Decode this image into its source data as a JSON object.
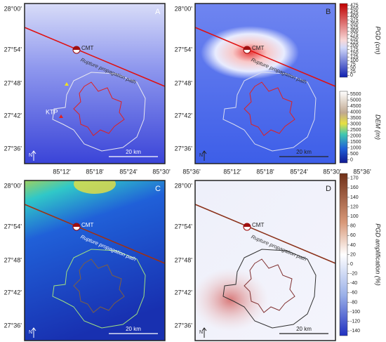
{
  "panels": [
    {
      "letter": "A"
    },
    {
      "letter": "B"
    },
    {
      "letter": "C"
    },
    {
      "letter": "D"
    }
  ],
  "lat_labels": [
    "28°00'",
    "27°54'",
    "27°48'",
    "27°42'",
    "27°36'"
  ],
  "lon_labels": [
    "85°12'",
    "85°18'",
    "85°24'",
    "85°30'",
    "85°36'"
  ],
  "annotations": {
    "cmt": "CMT",
    "rupture": "Rupture propagation path",
    "ktp": "KTP",
    "north": "N",
    "scale": "20 km"
  },
  "colorbars": [
    {
      "title": "PGD (cm)",
      "ticks": [
        475,
        450,
        425,
        400,
        375,
        350,
        325,
        300,
        275,
        250,
        225,
        200,
        175,
        150,
        125,
        100,
        75,
        50,
        25,
        0
      ]
    },
    {
      "title": "DEM (m)",
      "ticks": [
        5500,
        5000,
        4500,
        4000,
        3500,
        3000,
        2500,
        2000,
        1500,
        1000,
        500,
        0
      ]
    },
    {
      "title": "PGD amplification (%)",
      "ticks": [
        170,
        160,
        140,
        120,
        100,
        80,
        60,
        40,
        20,
        0,
        -20,
        -40,
        -60,
        -80,
        -100,
        -120,
        -140
      ]
    }
  ]
}
